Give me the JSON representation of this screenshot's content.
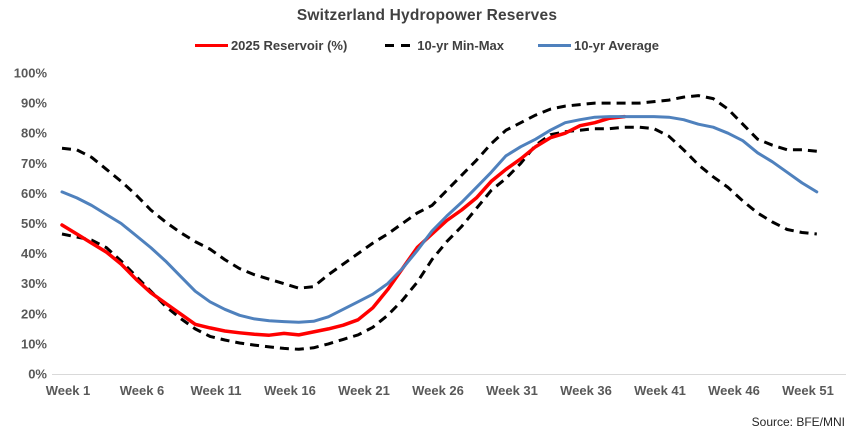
{
  "legend": [
    {
      "label": "2025 Reservoir (%)",
      "color": "#FF0000",
      "style": "solid"
    },
    {
      "label": "10-yr Min-Max",
      "color": "#000000",
      "style": "dashed"
    },
    {
      "label": "10-yr Average",
      "color": "#4F81BD",
      "style": "solid"
    }
  ],
  "chart_data": {
    "type": "line",
    "title": "Switzerland Hydropower Reserves",
    "source": "Source: BFE/MNI",
    "x_unit": "week",
    "x_range": [
      1,
      52
    ],
    "ylim": [
      0,
      100
    ],
    "grid": false,
    "legend_position": "top",
    "y_tick_labels": [
      "0%",
      "10%",
      "20%",
      "30%",
      "40%",
      "50%",
      "60%",
      "70%",
      "80%",
      "90%",
      "100%"
    ],
    "x_tick_weeks": [
      1,
      6,
      11,
      16,
      21,
      26,
      31,
      36,
      41,
      46,
      51
    ],
    "x_tick_labels": [
      "Week 1",
      "Week 6",
      "Week 11",
      "Week 16",
      "Week 21",
      "Week 26",
      "Week 31",
      "Week 36",
      "Week 41",
      "Week 46",
      "Week 51"
    ],
    "series": [
      {
        "name": "10-yr Max",
        "legend_label": "10-yr Min-Max",
        "color": "#000000",
        "line_style": "dashed",
        "week_start": 1,
        "values": [
          75,
          74.5,
          72,
          68,
          64,
          59.5,
          54.5,
          50.5,
          47,
          44,
          41.5,
          38,
          35,
          33,
          31.5,
          30,
          28.5,
          29,
          33,
          36.5,
          40,
          43.5,
          46.5,
          50,
          53.5,
          56,
          61,
          66,
          71,
          76.5,
          81,
          83.5,
          86,
          88,
          89,
          89.5,
          90,
          90,
          90,
          90,
          90.5,
          91,
          92,
          92.5,
          91.5,
          88,
          83,
          78,
          76,
          74.5,
          74.5,
          74
        ]
      },
      {
        "name": "10-yr Min",
        "legend_label": "10-yr Min-Max",
        "color": "#000000",
        "line_style": "dashed",
        "week_start": 1,
        "values": [
          46.5,
          45.5,
          44.5,
          42,
          37.5,
          32.5,
          27.5,
          22.5,
          18.5,
          15,
          12.5,
          11.3,
          10.3,
          9.6,
          9,
          8.5,
          8.2,
          8.7,
          10,
          11.5,
          13,
          15.5,
          19.5,
          24.5,
          30.5,
          38,
          44,
          49,
          55,
          61,
          65,
          70,
          76,
          79.5,
          80.5,
          81,
          81.5,
          81.5,
          82,
          82,
          81.5,
          79,
          74.5,
          69.5,
          65.5,
          62,
          57.5,
          53.5,
          50.5,
          48,
          47,
          46.5
        ]
      },
      {
        "name": "2025 Reservoir (%)",
        "legend_label": "2025 Reservoir (%)",
        "color": "#FF0000",
        "line_style": "solid",
        "week_start": 1,
        "values": [
          49.5,
          46.5,
          43.5,
          40.5,
          36.5,
          31.5,
          27,
          23.5,
          20,
          16.5,
          15.3,
          14.3,
          13.7,
          13.2,
          12.9,
          13.5,
          13,
          14,
          15,
          16.2,
          18,
          22,
          28,
          35,
          42,
          46.5,
          51,
          54.5,
          58.5,
          64,
          68,
          71.5,
          75.5,
          78.5,
          80,
          82.5,
          83.5,
          85,
          85.5
        ]
      },
      {
        "name": "10-yr Average",
        "legend_label": "10-yr Average",
        "color": "#4F81BD",
        "line_style": "solid",
        "week_start": 1,
        "values": [
          60.5,
          58.5,
          56,
          53,
          50,
          46,
          42,
          37.5,
          32.5,
          27.5,
          24,
          21.5,
          19.5,
          18.3,
          17.7,
          17.4,
          17.2,
          17.5,
          19,
          21.5,
          24,
          26.5,
          30,
          35,
          41,
          47.5,
          52.5,
          57,
          62,
          67,
          72.5,
          75.5,
          78,
          81,
          83.5,
          84.5,
          85.3,
          85.5,
          85.5,
          85.5,
          85.5,
          85.3,
          84.5,
          83,
          82,
          80,
          77.5,
          73.5,
          70.5,
          67,
          63.5,
          60.5
        ]
      }
    ]
  }
}
